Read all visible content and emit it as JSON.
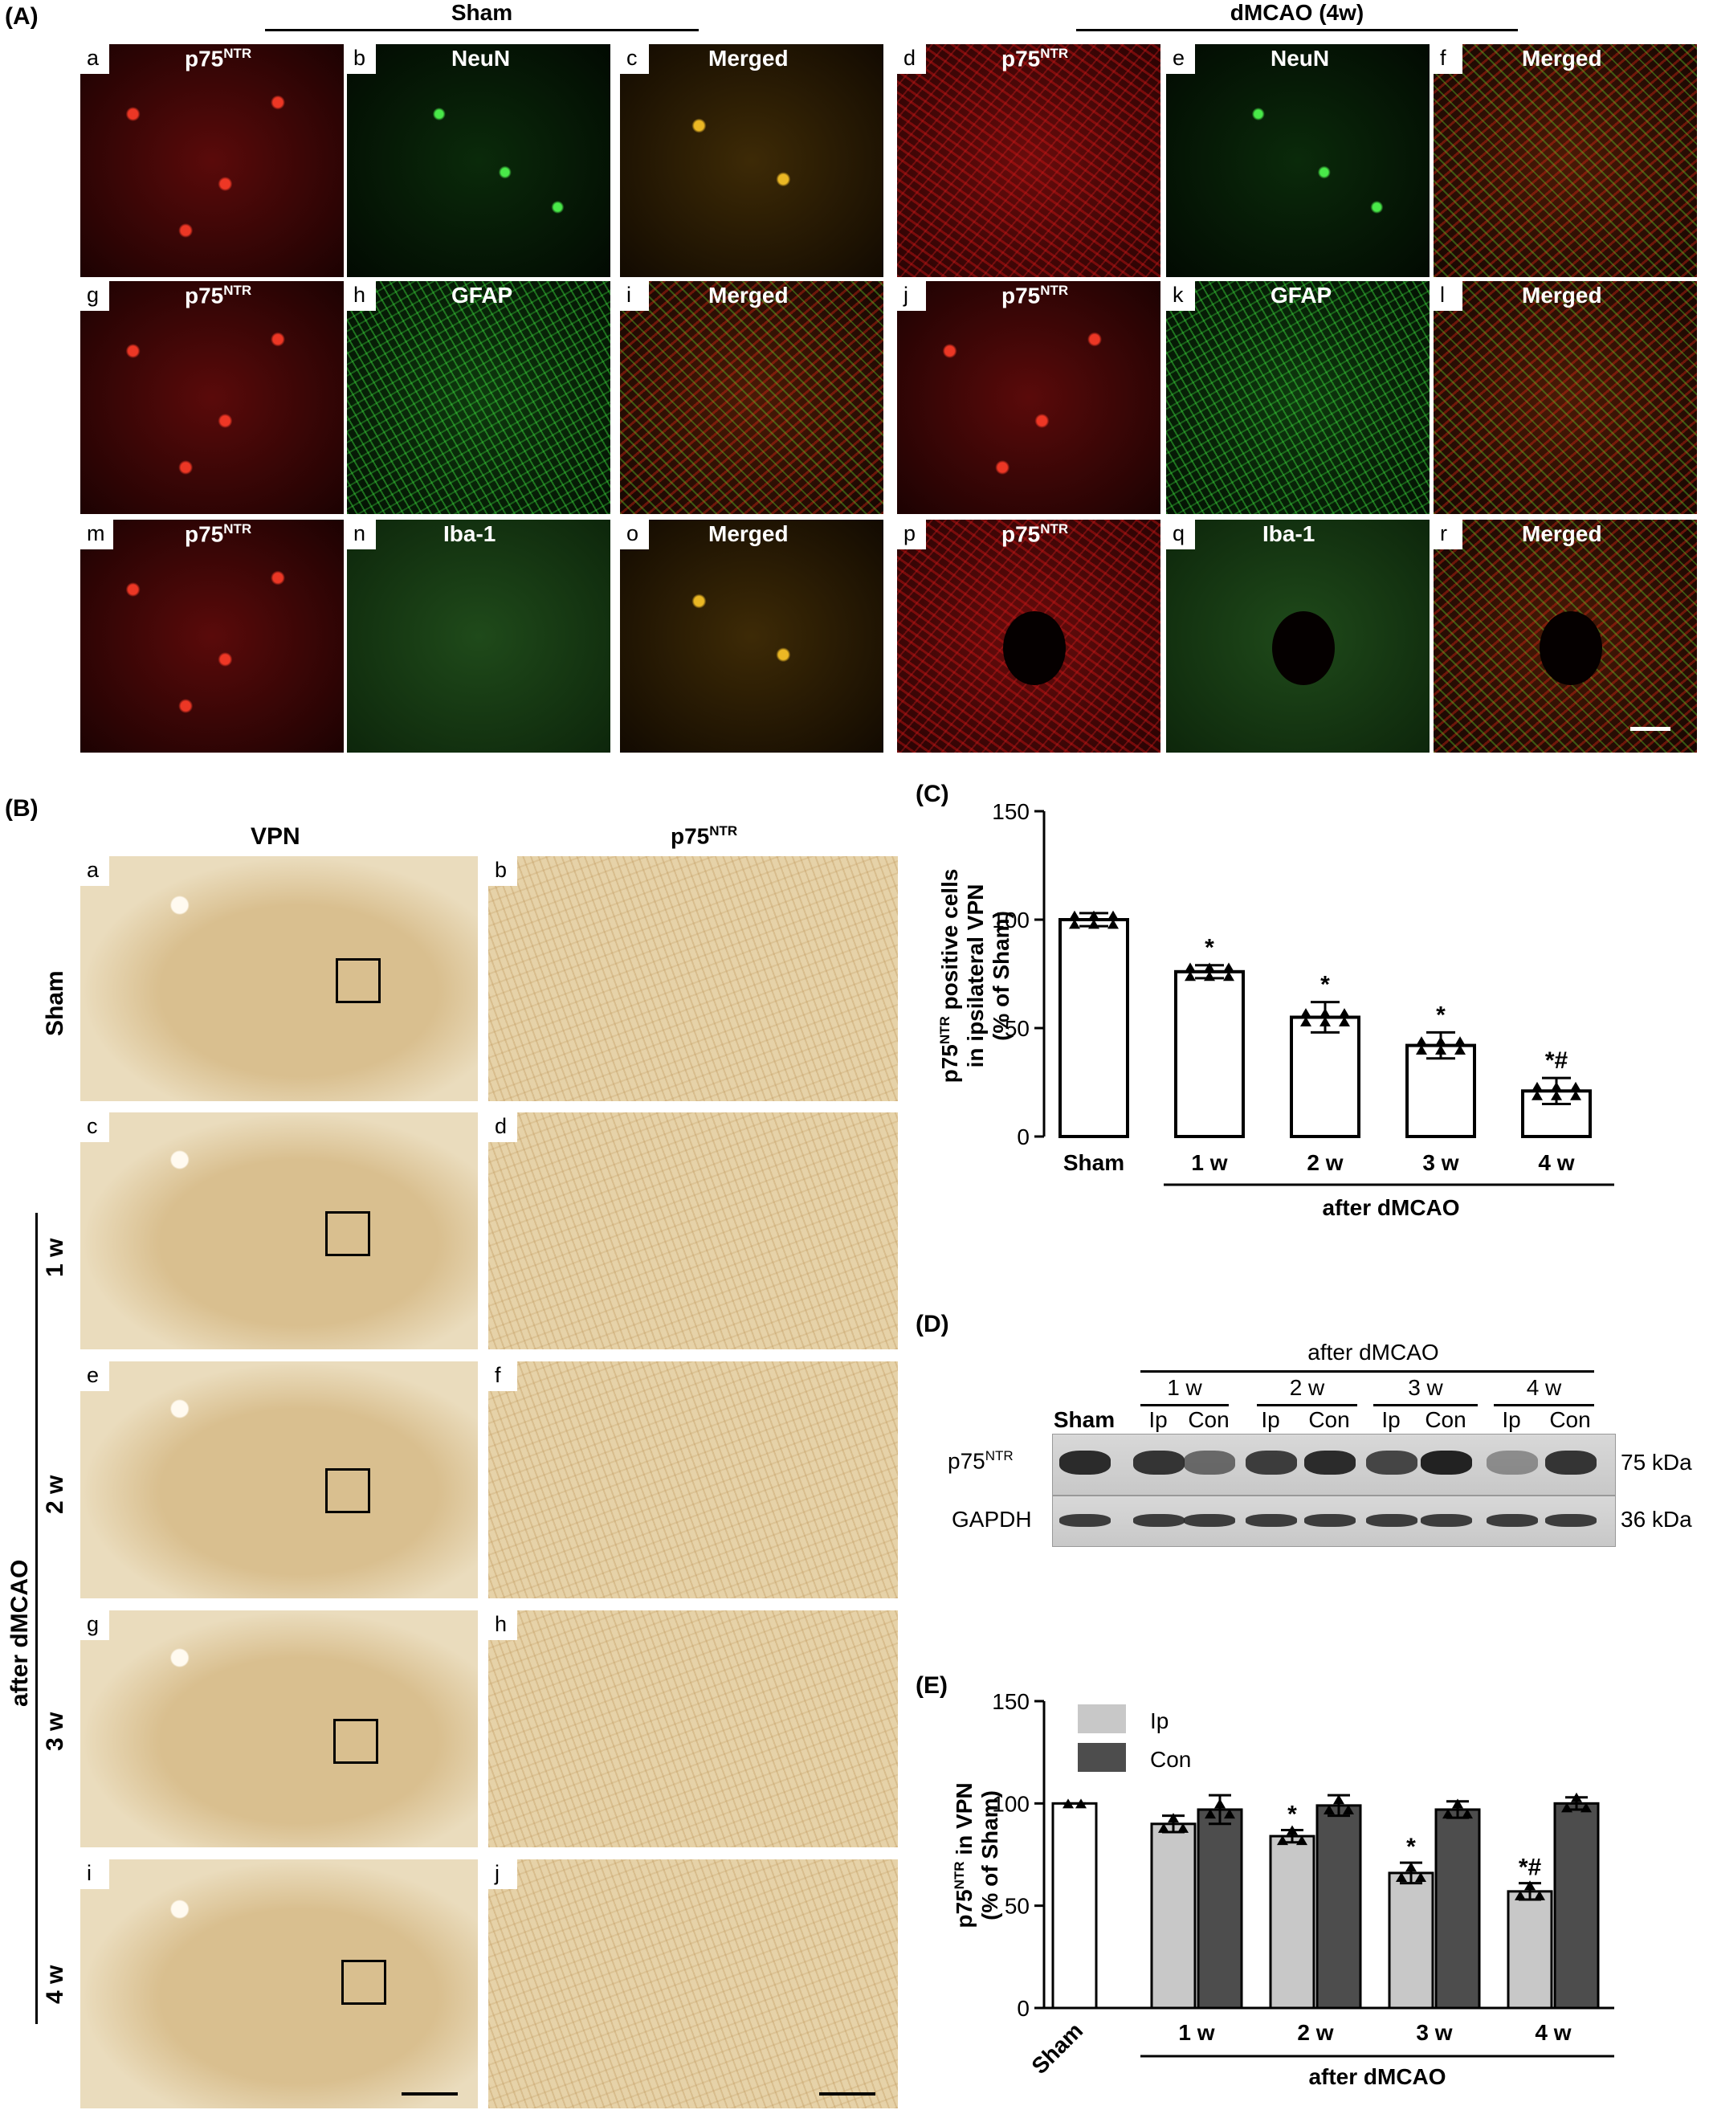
{
  "sections": {
    "A": "(A)",
    "B": "(B)",
    "C": "(C)",
    "D": "(D)",
    "E": "(E)"
  },
  "panelA": {
    "group_sham": "Sham",
    "group_dmcao": "dMCAO (4w)",
    "marker_p75_base": "p75",
    "marker_p75_sup": "NTR",
    "rows": [
      {
        "letters": [
          "a",
          "b",
          "c",
          "d",
          "e",
          "f"
        ],
        "markers": [
          "p75NTR",
          "NeuN",
          "Merged",
          "p75NTR",
          "NeuN",
          "Merged"
        ]
      },
      {
        "letters": [
          "g",
          "h",
          "i",
          "j",
          "k",
          "l"
        ],
        "markers": [
          "p75NTR",
          "GFAP",
          "Merged",
          "p75NTR",
          "GFAP",
          "Merged"
        ]
      },
      {
        "letters": [
          "m",
          "n",
          "o",
          "p",
          "q",
          "r"
        ],
        "markers": [
          "p75NTR",
          "Iba-1",
          "Merged",
          "p75NTR",
          "Iba-1",
          "Merged"
        ]
      }
    ],
    "merged_label": "Merged",
    "neun_label": "NeuN",
    "gfap_label": "GFAP",
    "iba_label": "Iba-1"
  },
  "panelB": {
    "col_vpn": "VPN",
    "col_p75_base": "p75",
    "col_p75_sup": "NTR",
    "row_labels": [
      "Sham",
      "1 w",
      "2 w",
      "3 w",
      "4 w"
    ],
    "side_label": "after dMCAO",
    "left_letters": [
      "a",
      "c",
      "e",
      "g",
      "i"
    ],
    "right_letters": [
      "b",
      "d",
      "f",
      "h",
      "j"
    ]
  },
  "panelD": {
    "header": "after dMCAO",
    "weeks": [
      "1 w",
      "2 w",
      "3 w",
      "4 w"
    ],
    "lanes": [
      "Sham",
      "Ip",
      "Con",
      "Ip",
      "Con",
      "Ip",
      "Con",
      "Ip",
      "Con"
    ],
    "row1_base": "p75",
    "row1_sup": "NTR",
    "row2": "GAPDH",
    "kda1": "75 kDa",
    "kda2": "36 kDa",
    "p75_band_intensity": [
      0.95,
      0.9,
      0.6,
      0.85,
      0.95,
      0.8,
      1.0,
      0.4,
      0.9
    ],
    "gapdh_band_intensity": [
      0.85,
      0.85,
      0.85,
      0.85,
      0.85,
      0.85,
      0.85,
      0.85,
      0.85
    ]
  },
  "chart_data": [
    {
      "type": "bar",
      "id": "C",
      "categories": [
        "Sham",
        "1 w",
        "2 w",
        "3 w",
        "4 w"
      ],
      "values": [
        100,
        76,
        55,
        42,
        21
      ],
      "errors": [
        3,
        3,
        7,
        6,
        6
      ],
      "significance": [
        "",
        "*",
        "*",
        "*",
        "*#"
      ],
      "ylabel_lines": [
        "p75NTR positive cells",
        "in ipsilateral VPN",
        "(% of Sham)"
      ],
      "ylabel_base": "p75",
      "ylabel_sup": "NTR",
      "ylabel_rest": " positive cells",
      "ylabel_line2": "in ipsilateral VPN",
      "ylabel_line3": "(% of Sham)",
      "yticks": [
        "0",
        "50",
        "100",
        "150"
      ],
      "ylim": [
        0,
        150
      ],
      "group_label": "after dMCAO",
      "colors": {
        "bar": "#ffffff",
        "edge": "#000000"
      }
    },
    {
      "type": "bar",
      "id": "E",
      "categories": [
        "Sham",
        "1 w",
        "2 w",
        "3 w",
        "4 w"
      ],
      "series": [
        {
          "name": "Ip",
          "values": [
            null,
            90,
            84,
            66,
            57
          ],
          "errors": [
            null,
            4,
            3,
            5,
            4
          ],
          "significance": [
            "",
            "",
            "*",
            "*",
            "*#"
          ]
        },
        {
          "name": "Con",
          "values": [
            null,
            97,
            99,
            97,
            100
          ],
          "errors": [
            null,
            7,
            5,
            4,
            3
          ],
          "significance": [
            "",
            "",
            "",
            "",
            ""
          ]
        }
      ],
      "sham": {
        "value": 100,
        "error": 1
      },
      "ylabel_base": "p75",
      "ylabel_sup": "NTR",
      "ylabel_rest": " in VPN",
      "ylabel_line2": "(% of Sham)",
      "yticks": [
        "0",
        "50",
        "100",
        "150"
      ],
      "ylim": [
        0,
        150
      ],
      "group_label": "after dMCAO",
      "legend_position": "top-left",
      "colors": {
        "sham": "#ffffff",
        "Ip": "#c8c8c8",
        "Con": "#4d4d4d",
        "edge": "#000000"
      }
    }
  ]
}
